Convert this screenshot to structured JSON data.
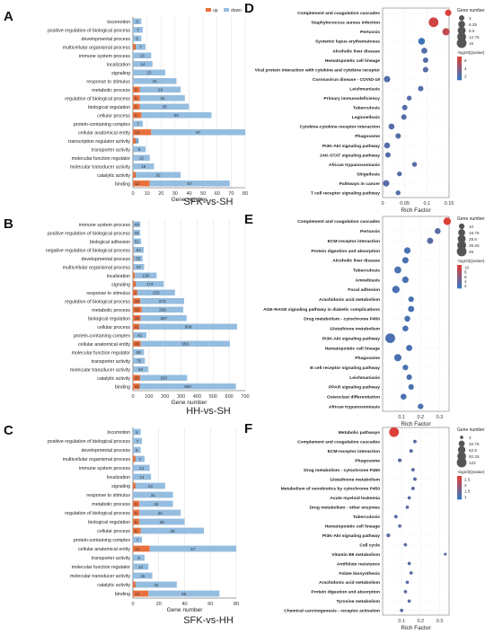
{
  "figure": {
    "comparisons": [
      "SFK-vs-SH",
      "HH-vs-SH",
      "SFK-vs-HH"
    ]
  },
  "chart_data": [
    {
      "panel": "A",
      "type": "bar",
      "orientation": "horizontal",
      "xlabel": "Gene number",
      "xlim": [
        0,
        80
      ],
      "xticks": [
        0,
        10,
        20,
        30,
        40,
        50,
        60,
        70,
        80
      ],
      "legend": {
        "position": "top-right",
        "items": [
          "up",
          "down"
        ]
      },
      "categories": [
        "locomotion",
        "positive regulation of biological process",
        "developmental process",
        "multicellular organismal process",
        "immune system process",
        "localization",
        "signaling",
        "response to stimulus",
        "metabolic process",
        "regulation of biological process",
        "biological regulation",
        "cellular process",
        "protein-containing complex",
        "cellular anatomical entity",
        "transcription regulator activity",
        "transporter activity",
        "molecular function regulator",
        "molecular transducer activity",
        "catalytic activity",
        "binding"
      ],
      "series": [
        {
          "name": "up",
          "values": [
            0,
            0,
            0,
            2,
            0,
            0,
            0,
            0,
            5,
            5,
            5,
            6,
            0,
            13,
            2,
            0,
            0,
            0,
            2,
            12
          ]
        },
        {
          "name": "down",
          "values": [
            6,
            7,
            6,
            7,
            13,
            14,
            23,
            31,
            29,
            32,
            35,
            50,
            7,
            67,
            2,
            9,
            12,
            15,
            32,
            57
          ]
        }
      ]
    },
    {
      "panel": "B",
      "type": "bar",
      "orientation": "horizontal",
      "xlabel": "Gene number",
      "xlim": [
        0,
        700
      ],
      "xticks": [
        0,
        100,
        200,
        300,
        400,
        500,
        600,
        700
      ],
      "categories": [
        "immune system process",
        "positive regulation of biological process",
        "biological adhesion",
        "negative regulation of biological process",
        "developmental process",
        "multicellular organismal process",
        "localization",
        "signaling",
        "response to stimulus",
        "regulation of biological process",
        "metabolic process",
        "biological regulation",
        "cellular process",
        "protein-containing complex",
        "cellular anatomical entity",
        "molecular function regulator",
        "transporter activity",
        "molecular transducer activity",
        "catalytic activity",
        "binding"
      ],
      "series": [
        {
          "name": "up",
          "values": [
            2,
            1,
            0,
            3,
            5,
            3,
            12,
            18,
            27,
            46,
            55,
            48,
            41,
            3,
            48,
            0,
            0,
            1,
            45,
            42
          ]
        },
        {
          "name": "down",
          "values": [
            44,
            44,
            51,
            64,
            55,
            67,
            136,
            174,
            235,
            273,
            259,
            287,
            608,
            81,
            556,
            69,
            75,
            94,
            293,
            600
          ]
        }
      ]
    },
    {
      "panel": "C",
      "type": "bar",
      "orientation": "horizontal",
      "xlabel": "Gene number",
      "xlim": [
        0,
        80
      ],
      "xticks": [
        0,
        20,
        40,
        60,
        80
      ],
      "categories": [
        "locomotion",
        "positive regulation of biological process",
        "developmental process",
        "multicellular organismal process",
        "immune system process",
        "localization",
        "signaling",
        "response to stimulus",
        "metabolic process",
        "regulation of biological process",
        "biological regulation",
        "cellular process",
        "protein-containing complex",
        "cellular anatomical entity",
        "transporter activity",
        "molecular function regulator",
        "molecular transducer activity",
        "catalytic activity",
        "binding"
      ],
      "series": [
        {
          "name": "up",
          "values": [
            0,
            0,
            0,
            2,
            0,
            0,
            2,
            0,
            5,
            5,
            5,
            6,
            0,
            13,
            0,
            0,
            0,
            2,
            12
          ]
        },
        {
          "name": "down",
          "values": [
            6,
            7,
            6,
            7,
            13,
            14,
            23,
            31,
            26,
            32,
            35,
            49,
            7,
            67,
            9,
            12,
            15,
            32,
            55
          ]
        }
      ]
    },
    {
      "panel": "D",
      "type": "scatter",
      "xlabel": "Rich Factor",
      "xlim": [
        0,
        0.15
      ],
      "xticks": [
        0,
        0.05,
        0.1,
        0.15
      ],
      "size_legend_title": "Gene number",
      "size_legend": [
        3,
        6.25,
        9.5,
        12.75,
        16
      ],
      "color_legend_title": "-log10(Qvalue)",
      "color_ticks": [
        6,
        4,
        2
      ],
      "color_range": [
        1,
        7
      ],
      "categories": [
        "Complement and coagulation cascades",
        "Staphylococcus aureus infection",
        "Pertussis",
        "Systemic lupus erythematosus",
        "Alcoholic liver disease",
        "Hematopoietic cell lineage",
        "Viral protein interaction with cytokine and cytokine receptor",
        "Coronavirus disease - COVID-19",
        "Leishmaniasis",
        "Primary immunodeficiency",
        "Tuberculosis",
        "Legionellosis",
        "Cytokine-cytokine receptor interaction",
        "Phagosome",
        "PI3K-Akt signaling pathway",
        "JAK-STAT signaling pathway",
        "African trypanosomiasis",
        "Shigellosis",
        "Pathways in cancer",
        "T cell receptor signaling pathway"
      ],
      "x": [
        0.148,
        0.115,
        0.143,
        0.088,
        0.094,
        0.097,
        0.097,
        0.01,
        0.086,
        0.06,
        0.05,
        0.048,
        0.02,
        0.035,
        0.01,
        0.012,
        0.072,
        0.038,
        0.008,
        0.035
      ],
      "sizes": [
        5,
        16,
        7,
        6,
        4,
        3,
        3,
        5,
        3,
        2,
        3,
        3,
        4,
        3,
        4,
        3,
        2,
        2,
        5,
        2
      ],
      "qvalues": [
        7,
        6.5,
        6,
        1.2,
        2,
        2,
        2,
        2,
        2,
        2,
        2,
        2,
        2,
        2,
        2,
        2,
        2,
        2,
        2,
        2
      ]
    },
    {
      "panel": "E",
      "type": "scatter",
      "xlabel": "Rich Factor",
      "xlim": [
        0,
        0.35
      ],
      "xticks": [
        0.1,
        0.2,
        0.3
      ],
      "size_legend_title": "Gene number",
      "size_legend": [
        10,
        19.75,
        29.5,
        39.25,
        49
      ],
      "color_legend_title": "-log10(Qvalue)",
      "color_ticks": [
        10,
        8,
        6,
        4,
        2
      ],
      "color_range": [
        1,
        11
      ],
      "categories": [
        "Complement and coagulation cascades",
        "Pertussis",
        "ECM-receptor interaction",
        "Protein digestion and absorption",
        "Alcoholic liver disease",
        "Tuberculosis",
        "Amoebiasis",
        "Focal adhesion",
        "Arachidonic acid metabolism",
        "AGE-RAGE signaling pathway in diabetic complications",
        "Drug metabolism - cytochrome P450",
        "Glutathione metabolism",
        "PI3K-Akt signaling pathway",
        "Hematopoietic cell lineage",
        "Phagosome",
        "B cell receptor signaling pathway",
        "Leishmaniasis",
        "PPAR signaling pathway",
        "Osteoclast differentiation",
        "African trypanosomiasis"
      ],
      "x": [
        0.34,
        0.29,
        0.25,
        0.13,
        0.12,
        0.08,
        0.12,
        0.07,
        0.15,
        0.15,
        0.13,
        0.12,
        0.04,
        0.14,
        0.08,
        0.12,
        0.14,
        0.15,
        0.11,
        0.2
      ],
      "sizes": [
        25,
        12,
        14,
        16,
        15,
        20,
        16,
        24,
        10,
        14,
        12,
        12,
        49,
        14,
        22,
        10,
        10,
        10,
        12,
        10
      ],
      "qvalues": [
        11,
        3,
        3,
        2,
        2,
        2,
        2,
        2,
        2,
        2,
        2,
        2,
        2,
        2,
        2,
        2,
        2,
        2,
        2,
        2
      ]
    },
    {
      "panel": "F",
      "type": "scatter",
      "xlabel": "Rich Factor",
      "xlim": [
        0,
        0.35
      ],
      "xticks": [
        0.1,
        0.2,
        0.3
      ],
      "size_legend_title": "Gene number",
      "size_legend": [
        3,
        32.75,
        62.5,
        92.25,
        122
      ],
      "color_legend_title": "-log10(Qvalue)",
      "color_ticks": [
        2.5,
        2,
        1.5,
        1
      ],
      "color_range": [
        0.8,
        2.8
      ],
      "categories": [
        "Metabolic pathways",
        "Complement and coagulation cascades",
        "ECM-receptor interaction",
        "Phagosome",
        "Drug metabolism - cytochrome P450",
        "Glutathione metabolism",
        "Metabolism of xenobiotics by cytochrome P450",
        "Acute myeloid leukemia",
        "Drug metabolism - other enzymes",
        "Tuberculosis",
        "Hematopoietic cell lineage",
        "PI3K-Akt signaling pathway",
        "Cell cycle",
        "Vitamin B6 metabolism",
        "Antifolate resistance",
        "Folate biosynthesis",
        "Arachidonic acid metabolism",
        "Protein digestion and absorption",
        "Tyrosine metabolism",
        "Chemical carcinogenesis - receptor activation"
      ],
      "x": [
        0.06,
        0.17,
        0.15,
        0.09,
        0.16,
        0.17,
        0.16,
        0.14,
        0.13,
        0.07,
        0.09,
        0.03,
        0.12,
        0.33,
        0.14,
        0.15,
        0.13,
        0.12,
        0.14,
        0.1
      ],
      "sizes": [
        122,
        4,
        4,
        5,
        4,
        4,
        4,
        3,
        3,
        4,
        3,
        6,
        3,
        1,
        3,
        3,
        3,
        3,
        3,
        3
      ],
      "qvalues": [
        2.8,
        1.2,
        1.2,
        1.2,
        1.2,
        1.2,
        1.2,
        1.2,
        1.2,
        1.2,
        1.2,
        1.2,
        1.2,
        1.2,
        1.2,
        1.2,
        1.2,
        1.2,
        1.2,
        1.2
      ]
    }
  ]
}
